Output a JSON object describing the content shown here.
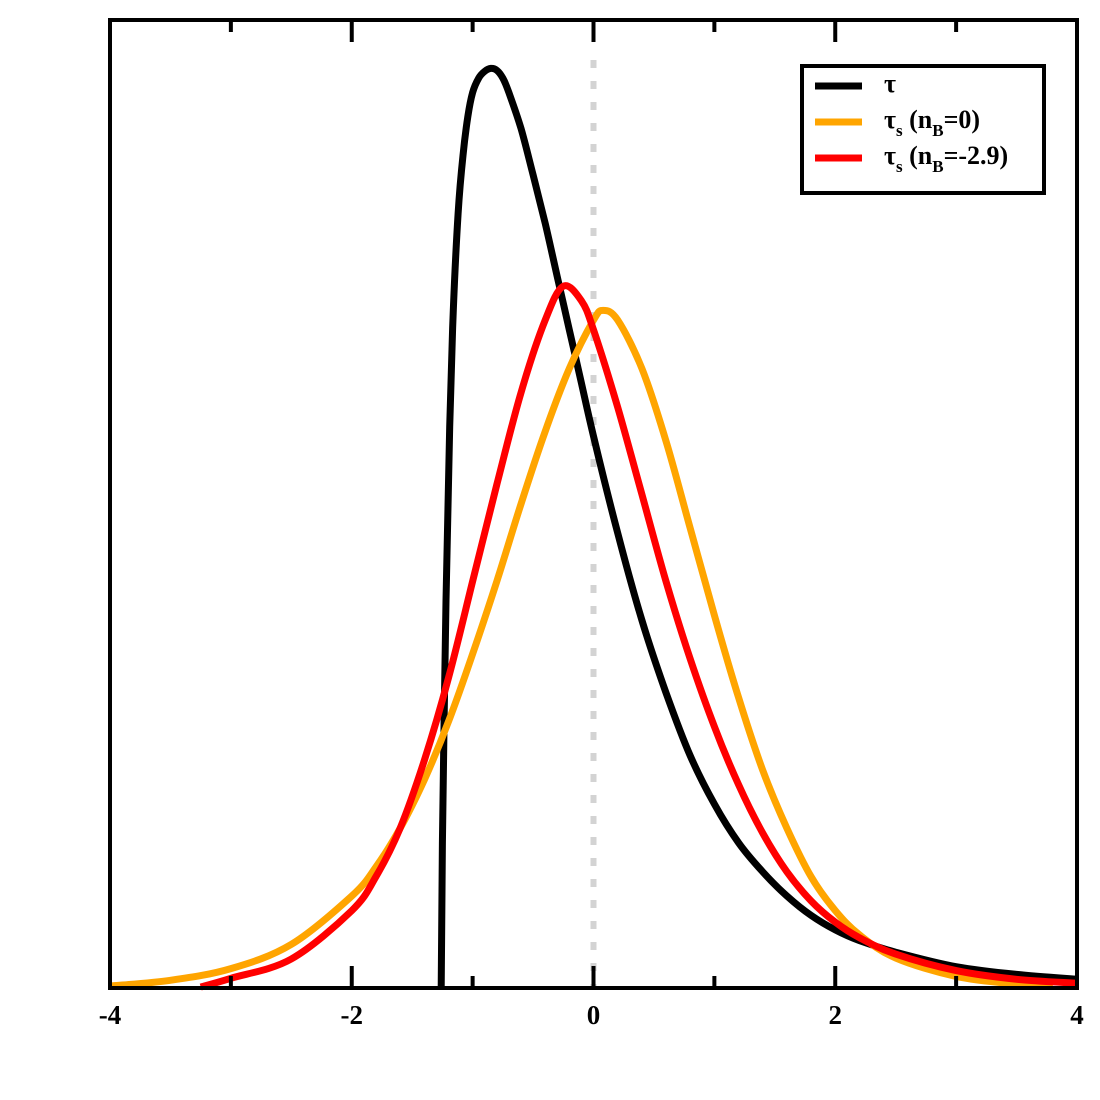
{
  "chart_data": {
    "type": "line",
    "title": "",
    "xlabel": "",
    "ylabel": "",
    "xlim": [
      -4,
      4
    ],
    "ylim": [
      0,
      1.0
    ],
    "x_ticks": [
      -4,
      -2,
      0,
      2,
      4
    ],
    "x_tick_labels": [
      "-4",
      "-2",
      "0",
      "2",
      "4"
    ],
    "minor_x_ticks": [
      -3,
      -1,
      1,
      3
    ],
    "y_ticks_shown": false,
    "grid": false,
    "vline": {
      "x": 0,
      "style": "dotted",
      "color": "#d3d3d3"
    },
    "legend": {
      "placement": "top-right",
      "entries": [
        {
          "series": "tau",
          "symbol": "τ",
          "subscript": "",
          "suffix": ""
        },
        {
          "series": "tau_s_nB0",
          "symbol": "τ",
          "subscript": "s",
          "suffix": " (n",
          "suffix_sub": "B",
          "suffix_end": "=0)"
        },
        {
          "series": "tau_s_nB-2.9",
          "symbol": "τ",
          "subscript": "s",
          "suffix": " (n",
          "suffix_sub": "B",
          "suffix_end": "=-2.9)"
        }
      ]
    },
    "series": [
      {
        "name": "τ",
        "color": "#000000",
        "x": [
          -1.26,
          -1.25,
          -1.22,
          -1.19,
          -1.16,
          -1.12,
          -1.08,
          -1.04,
          -1.0,
          -0.95,
          -0.9,
          -0.85,
          -0.8,
          -0.75,
          -0.7,
          -0.6,
          -0.5,
          -0.4,
          -0.3,
          -0.2,
          -0.1,
          0.0,
          0.2,
          0.4,
          0.6,
          0.8,
          1.0,
          1.2,
          1.4,
          1.6,
          1.8,
          2.0,
          2.2,
          2.5,
          3.0,
          3.5,
          4.0
        ],
        "y": [
          0.0,
          0.15,
          0.4,
          0.58,
          0.7,
          0.8,
          0.86,
          0.9,
          0.925,
          0.94,
          0.947,
          0.95,
          0.948,
          0.94,
          0.925,
          0.888,
          0.84,
          0.79,
          0.735,
          0.68,
          0.625,
          0.57,
          0.47,
          0.38,
          0.305,
          0.24,
          0.19,
          0.15,
          0.12,
          0.095,
          0.075,
          0.06,
          0.049,
          0.037,
          0.022,
          0.014,
          0.009
        ]
      },
      {
        "name": "τ",
        "name_sub": "s",
        "name_suffix": "(n_B=0)",
        "color": "#ffa500",
        "x": [
          -4.0,
          -3.5,
          -3.0,
          -2.5,
          -2.0,
          -1.8,
          -1.6,
          -1.4,
          -1.2,
          -1.0,
          -0.8,
          -0.6,
          -0.4,
          -0.2,
          0.0,
          0.08,
          0.2,
          0.4,
          0.6,
          0.8,
          1.0,
          1.2,
          1.4,
          1.6,
          1.8,
          2.0,
          2.2,
          2.5,
          3.0,
          3.5,
          3.8
        ],
        "y": [
          0.002,
          0.008,
          0.02,
          0.045,
          0.095,
          0.125,
          0.165,
          0.215,
          0.275,
          0.345,
          0.42,
          0.5,
          0.575,
          0.64,
          0.69,
          0.7,
          0.69,
          0.64,
          0.565,
          0.475,
          0.385,
          0.3,
          0.225,
          0.165,
          0.115,
          0.08,
          0.055,
          0.031,
          0.012,
          0.004,
          0.002
        ]
      },
      {
        "name": "τ",
        "name_sub": "s",
        "name_suffix": "(n_B=-2.9)",
        "color": "#ff0000",
        "x": [
          -3.25,
          -3.0,
          -2.5,
          -2.0,
          -1.8,
          -1.6,
          -1.4,
          -1.2,
          -1.0,
          -0.8,
          -0.6,
          -0.4,
          -0.25,
          -0.1,
          0.0,
          0.2,
          0.4,
          0.6,
          0.8,
          1.0,
          1.2,
          1.4,
          1.6,
          1.8,
          2.0,
          2.2,
          2.5,
          3.0,
          3.5,
          4.0
        ],
        "y": [
          0.001,
          0.01,
          0.03,
          0.08,
          0.115,
          0.165,
          0.235,
          0.32,
          0.42,
          0.52,
          0.615,
          0.69,
          0.725,
          0.71,
          0.68,
          0.6,
          0.51,
          0.42,
          0.34,
          0.27,
          0.21,
          0.16,
          0.12,
          0.09,
          0.068,
          0.052,
          0.035,
          0.018,
          0.009,
          0.005
        ]
      }
    ]
  }
}
